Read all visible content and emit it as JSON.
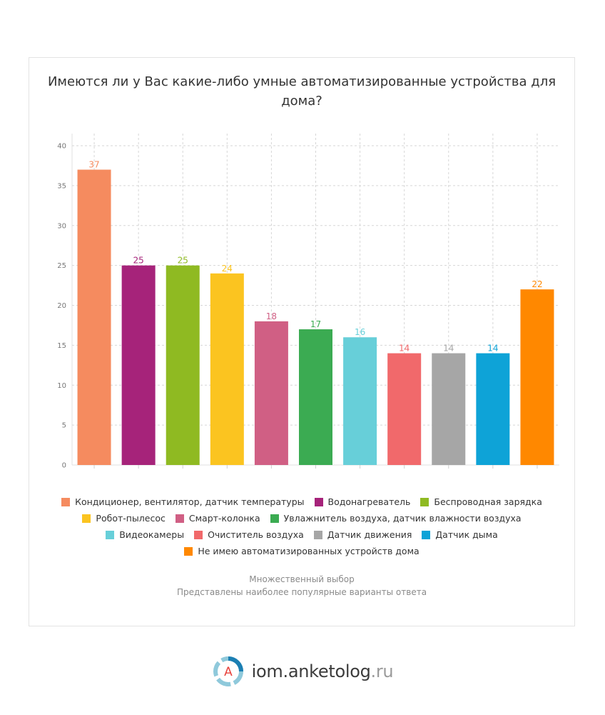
{
  "chart_data": {
    "type": "bar",
    "title": "Имеются ли у Вас какие-либо умные автоматизированные устройства для дома?",
    "categories": [
      "Кондиционер, вентилятор, датчик температуры",
      "Водонагреватель",
      "Беспроводная зарядка",
      "Робот-пылесос",
      "Смарт-колонка",
      "Увлажнитель воздуха, датчик влажности воздуха",
      "Видеокамеры",
      "Очиститель воздуха",
      "Датчик движения",
      "Датчик дыма",
      "Не имею автоматизированных устройств дома"
    ],
    "values": [
      37,
      25,
      25,
      24,
      18,
      17,
      16,
      14,
      14,
      14,
      22
    ],
    "colors": [
      "#f58b5f",
      "#a6237a",
      "#8fba22",
      "#fbc420",
      "#d05f84",
      "#3bab52",
      "#67cfd9",
      "#f1696b",
      "#a6a6a6",
      "#0ea3d7",
      "#ff8800"
    ],
    "ylim": [
      0,
      40
    ],
    "yticks": [
      "0",
      "5",
      "10",
      "15",
      "20",
      "25",
      "30",
      "35",
      "40"
    ],
    "xlabel": "",
    "ylabel": "",
    "grid": true,
    "legend_position": "bottom"
  },
  "legend_rows": [
    [
      0,
      1,
      2
    ],
    [
      3,
      4,
      5
    ],
    [
      6,
      7,
      8,
      9
    ],
    [
      10
    ]
  ],
  "notes": {
    "line1": "Множественный выбор",
    "line2": "Представлены наиболее популярные варианты ответа"
  },
  "footer": {
    "logo_letter": "A",
    "brand": "iom.anketolog",
    "tld": ".ru"
  }
}
